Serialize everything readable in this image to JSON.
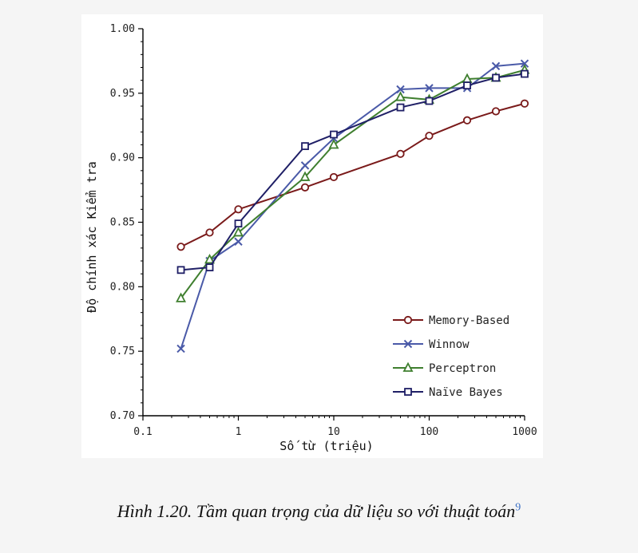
{
  "chart_data": {
    "type": "line",
    "xscale": "log",
    "xlabel": "Số từ (triệu)",
    "ylabel": "Độ chính xác Kiểm tra",
    "xlim": [
      0.1,
      1000
    ],
    "ylim": [
      0.7,
      1.0
    ],
    "xticks": [
      "0.1",
      "1",
      "10",
      "100",
      "1000"
    ],
    "yticks": [
      "0.70",
      "0.75",
      "0.80",
      "0.85",
      "0.90",
      "0.95",
      "1.00"
    ],
    "grid": false,
    "legend_position": "bottom-right",
    "x": [
      0.25,
      0.5,
      1,
      5,
      10,
      50,
      100,
      250,
      500,
      1000
    ],
    "series": [
      {
        "name": "Memory-Based",
        "color": "#7a1a1a",
        "marker": "circle",
        "values": [
          0.831,
          0.842,
          0.86,
          0.877,
          0.885,
          0.903,
          0.917,
          0.929,
          0.936,
          0.942
        ]
      },
      {
        "name": "Winnow",
        "color": "#4a5aa8",
        "marker": "x",
        "values": [
          0.752,
          0.82,
          0.835,
          0.894,
          0.915,
          0.953,
          0.954,
          0.954,
          0.971,
          0.973
        ]
      },
      {
        "name": "Perceptron",
        "color": "#3f7f2f",
        "marker": "triangle",
        "values": [
          0.791,
          0.821,
          0.842,
          0.885,
          0.91,
          0.947,
          0.945,
          0.961,
          0.962,
          0.968
        ]
      },
      {
        "name": "Naïve Bayes",
        "color": "#1f1f66",
        "marker": "square",
        "values": [
          0.813,
          0.815,
          0.849,
          0.909,
          0.918,
          0.939,
          0.944,
          0.956,
          0.962,
          0.965
        ]
      }
    ]
  },
  "caption": {
    "text": "Hình 1.20. Tầm quan trọng của dữ liệu so với thuật toán",
    "footnote": "9"
  }
}
